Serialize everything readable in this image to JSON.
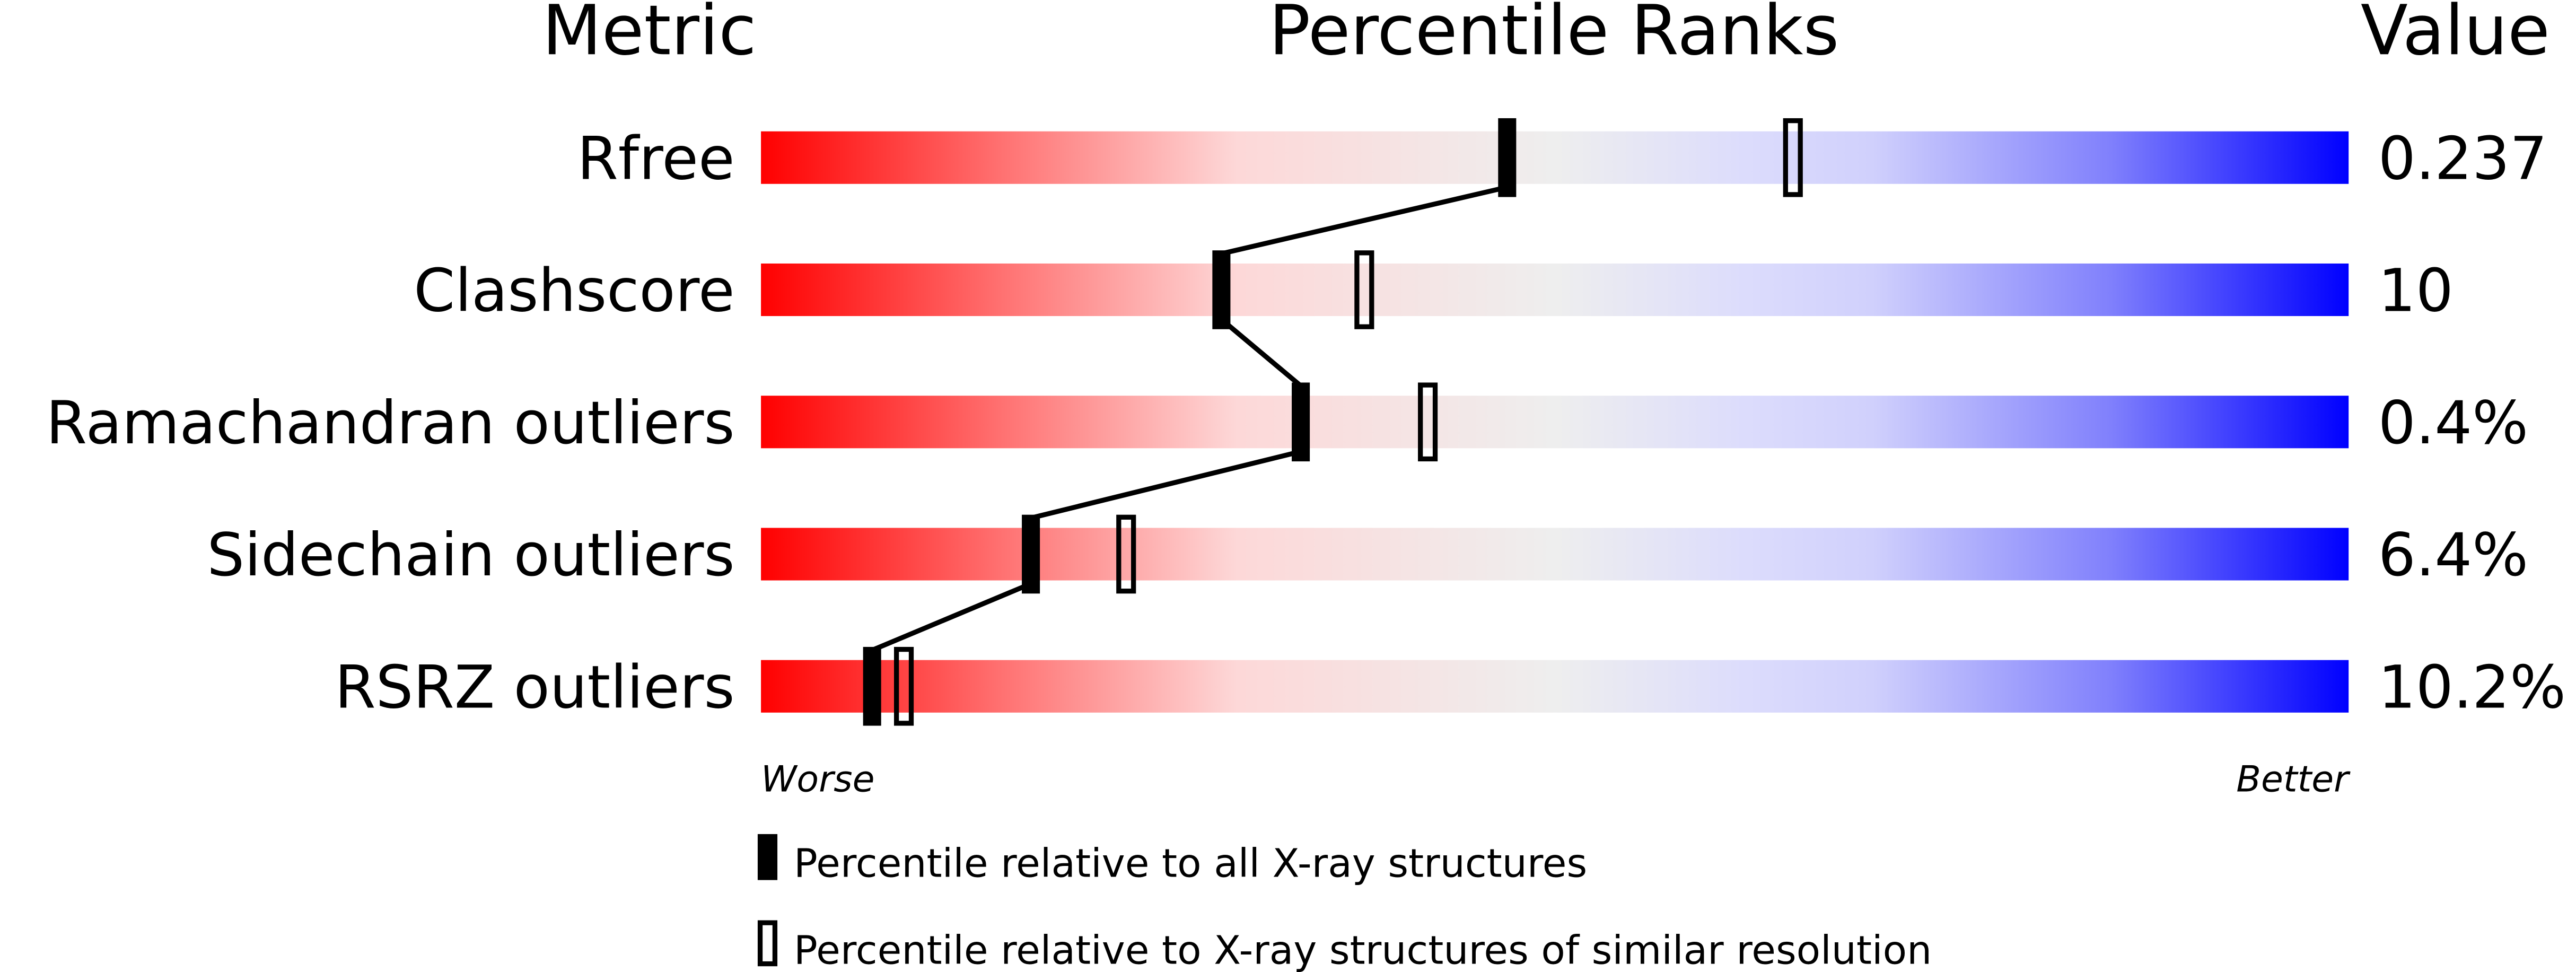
{
  "chart_data": {
    "type": "bar",
    "headers": {
      "metric": "Metric",
      "percentile": "Percentile Ranks",
      "value": "Value"
    },
    "xlim": [
      0,
      100
    ],
    "rows": [
      {
        "metric": "Rfree",
        "value": "0.237",
        "percentile_all": 47,
        "percentile_similar": 65
      },
      {
        "metric": "Clashscore",
        "value": "10",
        "percentile_all": 29,
        "percentile_similar": 38
      },
      {
        "metric": "Ramachandran outliers",
        "value": "0.4%",
        "percentile_all": 34,
        "percentile_similar": 42
      },
      {
        "metric": "Sidechain outliers",
        "value": "6.4%",
        "percentile_all": 17,
        "percentile_similar": 23
      },
      {
        "metric": "RSRZ outliers",
        "value": "10.2%",
        "percentile_all": 7,
        "percentile_similar": 9
      }
    ],
    "axis_left_label": "Worse",
    "axis_right_label": "Better",
    "legend": [
      {
        "label": "Percentile relative to all X-ray structures",
        "marker": "filled"
      },
      {
        "label": "Percentile relative to X-ray structures of similar resolution",
        "marker": "open"
      }
    ],
    "gradient_colors": [
      "#ff0000",
      "#eeeeee",
      "#0000ff"
    ]
  }
}
